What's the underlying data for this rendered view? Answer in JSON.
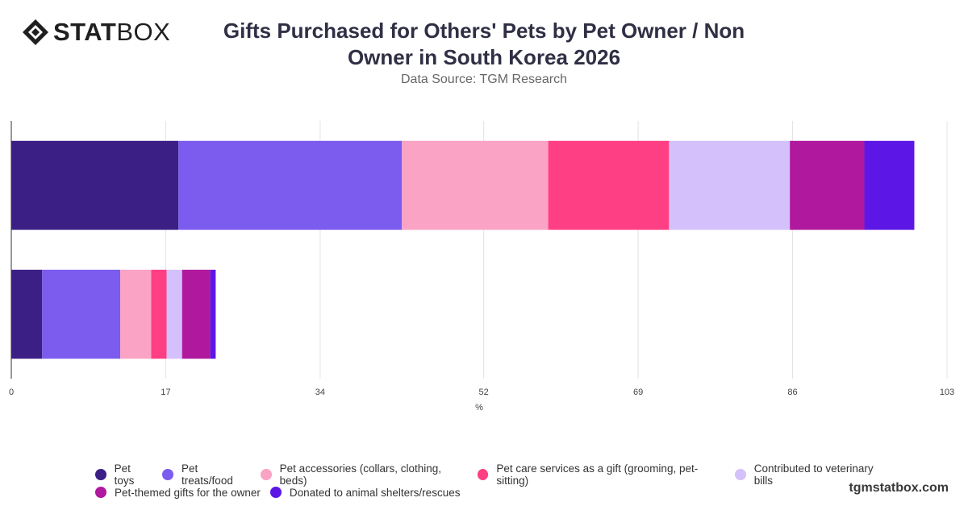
{
  "logo": {
    "icon": "statbox-diamond-icon",
    "bold": "STAT",
    "light": "BOX"
  },
  "title": "Gifts Purchased for Others' Pets by Pet Owner / Non Owner in South Korea 2026",
  "subtitle": "Data Source: TGM Research",
  "watermark": "tgmstatbox.com",
  "chart_data": {
    "type": "bar",
    "orientation": "horizontal",
    "stacked": true,
    "categories": [
      "",
      ""
    ],
    "series": [
      {
        "name": "Pet toys",
        "color": "#3b1f85",
        "values": [
          18.4,
          3.4
        ]
      },
      {
        "name": "Pet treats/food",
        "color": "#7b5cee",
        "values": [
          24.6,
          8.6
        ]
      },
      {
        "name": "Pet accessories (collars, clothing, beds)",
        "color": "#fba3c4",
        "values": [
          16.1,
          3.4
        ]
      },
      {
        "name": "Pet care services as a gift (grooming, pet-sitting)",
        "color": "#ff3f83",
        "values": [
          13.3,
          1.7
        ]
      },
      {
        "name": "Contributed to veterinary bills",
        "color": "#d4c0fb",
        "values": [
          13.3,
          1.7
        ]
      },
      {
        "name": "Pet-themed gifts for the owner",
        "color": "#b0189e",
        "values": [
          8.2,
          3.1
        ]
      },
      {
        "name": "Donated to animal shelters/rescues",
        "color": "#5c17e6",
        "values": [
          5.5,
          0.6
        ]
      }
    ],
    "xaxis": {
      "label": "%",
      "ticks": [
        "0",
        "17",
        "34",
        "52",
        "69",
        "86",
        "103"
      ],
      "range": [
        0,
        103
      ]
    },
    "grid": true,
    "legend_position": "bottom"
  }
}
